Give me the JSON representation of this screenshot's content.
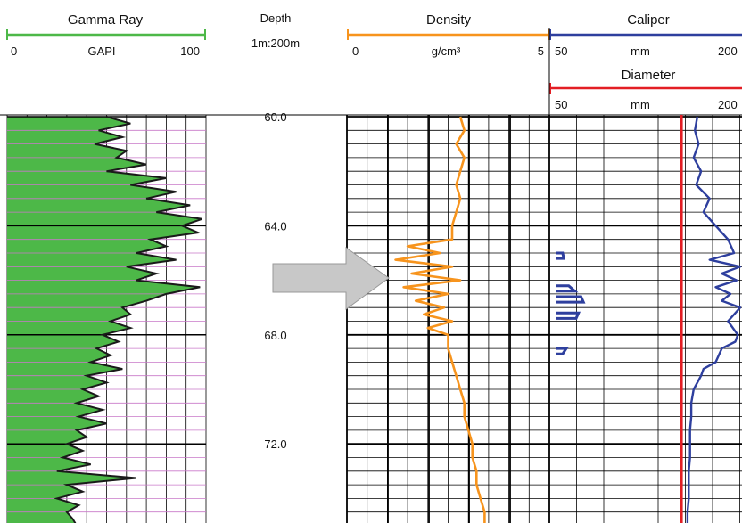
{
  "colors": {
    "gamma_fill": "#4db848",
    "gamma_line": "#1a1a1a",
    "gamma_scale": "#4db848",
    "density": "#f7941d",
    "caliper": "#2e3f9e",
    "diameter": "#e31e24",
    "arrow": "#c8c8c8",
    "gamma_grid_h": "#c978c9"
  },
  "chart_data": {
    "type": "line",
    "depth_axis": {
      "label": "Depth",
      "scale": "1m:200m",
      "range": [
        60.0,
        75.3
      ],
      "tick_labels": [
        {
          "value": 60.0,
          "label": "60.0"
        },
        {
          "value": 64.0,
          "label": "64.0"
        },
        {
          "value": 68.0,
          "label": "68.0"
        },
        {
          "value": 72.0,
          "label": "72.0"
        }
      ],
      "major_step": 4,
      "minor_step": 0.5
    },
    "tracks": [
      {
        "name": "Gamma Ray",
        "unit": "GAPI",
        "range": [
          0,
          100
        ],
        "min_label": "0",
        "max_label": "100",
        "series": [
          {
            "name": "Gamma Ray",
            "depth": [
              60.0,
              60.25,
              60.5,
              60.75,
              61.0,
              61.25,
              61.5,
              61.75,
              62.0,
              62.25,
              62.5,
              62.75,
              63.0,
              63.25,
              63.5,
              63.75,
              64.0,
              64.25,
              64.5,
              64.75,
              65.0,
              65.25,
              65.5,
              65.75,
              66.0,
              66.25,
              66.5,
              66.75,
              67.0,
              67.25,
              67.5,
              67.75,
              68.0,
              68.25,
              68.5,
              68.75,
              69.0,
              69.25,
              69.5,
              69.75,
              70.0,
              70.25,
              70.5,
              70.75,
              71.0,
              71.25,
              71.5,
              71.75,
              72.0,
              72.25,
              72.5,
              72.75,
              73.0,
              73.25,
              73.5,
              73.75,
              74.0,
              74.25,
              74.5,
              74.75,
              75.0,
              75.25
            ],
            "values": [
              50,
              62,
              46,
              58,
              44,
              60,
              55,
              70,
              50,
              80,
              62,
              85,
              70,
              92,
              75,
              98,
              88,
              96,
              72,
              80,
              65,
              85,
              60,
              75,
              65,
              97,
              80,
              70,
              58,
              62,
              52,
              62,
              48,
              56,
              45,
              52,
              42,
              58,
              40,
              50,
              38,
              46,
              35,
              48,
              36,
              50,
              35,
              40,
              30,
              38,
              28,
              42,
              25,
              65,
              30,
              38,
              25,
              36,
              30,
              33,
              35,
              37
            ]
          }
        ]
      },
      {
        "name": "Density",
        "unit": "g/cm³",
        "range": [
          0,
          5
        ],
        "min_label": "0",
        "max_label": "5",
        "series": [
          {
            "name": "Density",
            "depth": [
              60.0,
              60.5,
              61.0,
              61.5,
              62.0,
              62.5,
              63.0,
              63.5,
              64.0,
              64.5,
              64.75,
              65.0,
              65.25,
              65.5,
              65.75,
              66.0,
              66.25,
              66.5,
              66.75,
              67.0,
              67.25,
              67.5,
              67.75,
              68.0,
              68.5,
              69.0,
              69.5,
              70.0,
              70.5,
              71.0,
              71.5,
              72.0,
              72.5,
              73.0,
              73.5,
              74.0,
              74.5,
              75.0,
              75.3
            ],
            "values": [
              2.8,
              2.9,
              2.7,
              2.9,
              2.8,
              2.7,
              2.8,
              2.7,
              2.6,
              2.6,
              1.5,
              2.3,
              1.2,
              2.6,
              1.6,
              2.8,
              1.4,
              2.5,
              1.7,
              2.4,
              1.9,
              2.6,
              2.0,
              2.5,
              2.5,
              2.6,
              2.7,
              2.8,
              2.9,
              2.9,
              3.0,
              3.1,
              3.1,
              3.2,
              3.2,
              3.3,
              3.4,
              3.4,
              3.4
            ]
          }
        ]
      },
      {
        "name": "Caliper",
        "unit": "mm",
        "range": [
          50,
          200
        ],
        "min_label": "50",
        "max_label": "200",
        "series": [
          {
            "name": "Caliper",
            "depth": [
              60.0,
              60.5,
              61.0,
              61.5,
              62.0,
              62.5,
              63.0,
              63.5,
              64.0,
              64.5,
              65.0,
              65.25,
              65.5,
              65.75,
              66.0,
              66.25,
              66.5,
              66.75,
              67.0,
              67.5,
              68.0,
              68.25,
              68.5,
              69.0,
              69.25,
              69.5,
              70.0,
              70.5,
              71.0,
              71.5,
              72.0,
              72.5,
              73.0,
              73.5,
              74.0,
              74.5,
              75.0,
              75.3
            ],
            "values": [
              165,
              163,
              166,
              162,
              168,
              164,
              175,
              170,
              180,
              190,
              195,
              175,
              200,
              185,
              197,
              180,
              192,
              185,
              200,
              190,
              198,
              196,
              185,
              180,
              170,
              168,
              162,
              160,
              160,
              159,
              159,
              159,
              158,
              158,
              158,
              157,
              157,
              157
            ]
          },
          {
            "name": "Caliper-segments",
            "depth": [
              65.0,
              65.2,
              66.2,
              66.4,
              66.6,
              66.8,
              67.2,
              67.4,
              68.5,
              68.7
            ],
            "values": [
              55,
              56,
              60,
              65,
              70,
              72,
              68,
              66,
              58,
              55
            ]
          }
        ]
      },
      {
        "name": "Diameter",
        "unit": "mm",
        "range": [
          50,
          200
        ],
        "min_label": "50",
        "max_label": "200",
        "series": [
          {
            "name": "Diameter",
            "depth": [
              60.0,
              75.3
            ],
            "values": [
              152,
              152
            ]
          }
        ]
      }
    ],
    "grid": true
  }
}
